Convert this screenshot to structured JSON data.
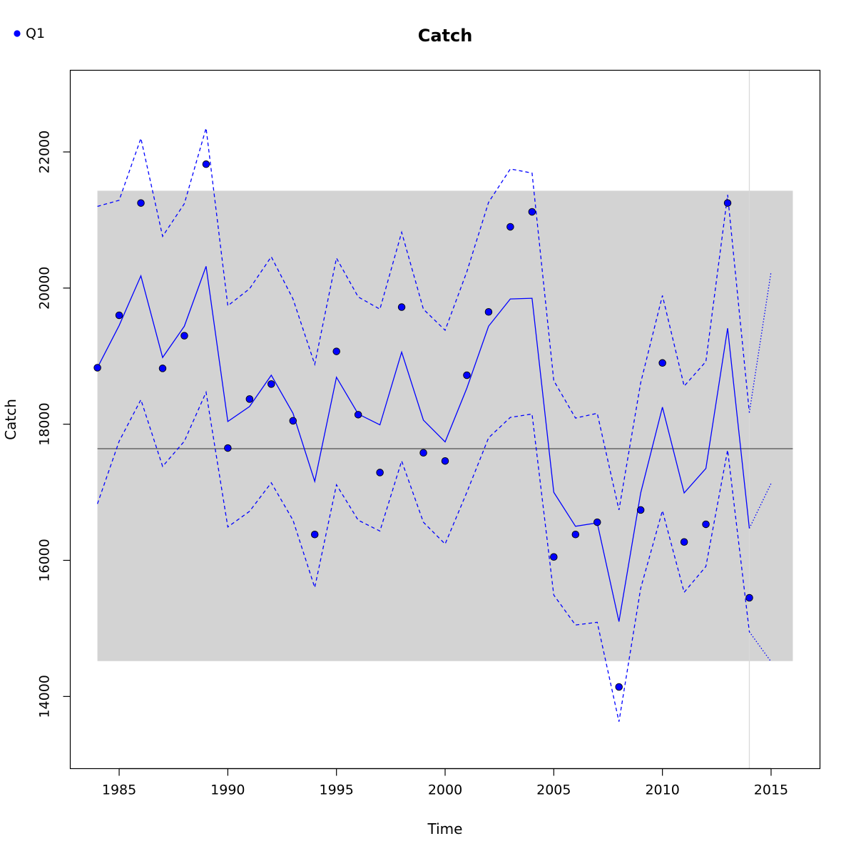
{
  "chart_data": {
    "type": "line",
    "title": "Catch",
    "xlabel": "Time",
    "ylabel": "Catch",
    "xlim": [
      1982.75,
      2017.25
    ],
    "ylim": [
      12940,
      23200
    ],
    "x_ticks": [
      1985,
      1990,
      1995,
      2000,
      2005,
      2010,
      2015
    ],
    "y_ticks": [
      14000,
      16000,
      18000,
      20000,
      22000
    ],
    "legend": {
      "position": "top-left",
      "entries": [
        {
          "label": "Q1",
          "color": "#0000ff",
          "marker": "filled-circle"
        }
      ]
    },
    "reference_band": {
      "x": [
        1984,
        2016
      ],
      "y": [
        14520,
        21430
      ],
      "color": "#d3d3d3"
    },
    "reference_line": {
      "y": 17640,
      "color": "#666666"
    },
    "vertical_line": {
      "x": 2014,
      "color": "#d9d9d9"
    },
    "series": [
      {
        "name": "Q1",
        "kind": "points",
        "color": "#0000ff",
        "x": [
          1984,
          1985,
          1986,
          1987,
          1988,
          1989,
          1990,
          1991,
          1992,
          1993,
          1994,
          1995,
          1996,
          1997,
          1998,
          1999,
          2000,
          2001,
          2002,
          2003,
          2004,
          2005,
          2006,
          2007,
          2008,
          2009,
          2010,
          2011,
          2012,
          2013,
          2014
        ],
        "values": [
          18830,
          19600,
          21250,
          18820,
          19300,
          21820,
          17650,
          18370,
          18590,
          18050,
          16380,
          19070,
          18140,
          17290,
          19720,
          17580,
          17460,
          18720,
          19650,
          20900,
          21120,
          16050,
          16380,
          16560,
          14140,
          16740,
          18900,
          16270,
          16530,
          21250,
          15450
        ]
      },
      {
        "kind": "line",
        "style": "solid",
        "color": "#0000ff",
        "x": [
          1984,
          1985,
          1986,
          1987,
          1988,
          1989,
          1990,
          1991,
          1992,
          1993,
          1994,
          1995,
          1996,
          1997,
          1998,
          1999,
          2000,
          2001,
          2002,
          2003,
          2004,
          2005,
          2006,
          2007,
          2008,
          2009,
          2010,
          2011,
          2012,
          2013,
          2014
        ],
        "values": [
          18830,
          19450,
          20180,
          18980,
          19440,
          20320,
          18040,
          18260,
          18720,
          18160,
          17160,
          18690,
          18150,
          17990,
          19060,
          18060,
          17740,
          18530,
          19440,
          19840,
          19850,
          17000,
          16500,
          16550,
          15100,
          16990,
          18250,
          16990,
          17350,
          19410,
          16470
        ]
      },
      {
        "kind": "line",
        "style": "dashed",
        "color": "#0000ff",
        "x": [
          1984,
          1985,
          1986,
          1987,
          1988,
          1989,
          1990,
          1991,
          1992,
          1993,
          1994,
          1995,
          1996,
          1997,
          1998,
          1999,
          2000,
          2001,
          2002,
          2003,
          2004,
          2005,
          2006,
          2007,
          2008,
          2009,
          2010,
          2011,
          2012,
          2013,
          2014
        ],
        "values": [
          21200,
          21290,
          22200,
          20760,
          21240,
          22350,
          19740,
          19990,
          20460,
          19840,
          18880,
          20440,
          19870,
          19690,
          20820,
          19690,
          19380,
          20240,
          21260,
          21750,
          21690,
          18640,
          18090,
          18160,
          16740,
          18610,
          19890,
          18560,
          18920,
          21370,
          18170
        ]
      },
      {
        "kind": "line",
        "style": "dashed",
        "color": "#0000ff",
        "x": [
          1984,
          1985,
          1986,
          1987,
          1988,
          1989,
          1990,
          1991,
          1992,
          1993,
          1994,
          1995,
          1996,
          1997,
          1998,
          1999,
          2000,
          2001,
          2002,
          2003,
          2004,
          2005,
          2006,
          2007,
          2008,
          2009,
          2010,
          2011,
          2012,
          2013,
          2014
        ],
        "values": [
          16830,
          17750,
          18360,
          17380,
          17750,
          18470,
          16490,
          16720,
          17140,
          16590,
          15600,
          17110,
          16590,
          16430,
          17460,
          16560,
          16240,
          17000,
          17800,
          18100,
          18150,
          15490,
          15050,
          15090,
          13630,
          15590,
          16730,
          15530,
          15910,
          17620,
          14950
        ]
      },
      {
        "kind": "line",
        "style": "dotted",
        "color": "#0000ff",
        "x": [
          2014,
          2015
        ],
        "values": [
          16470,
          17130
        ]
      },
      {
        "kind": "line",
        "style": "dotted",
        "color": "#0000ff",
        "x": [
          2014,
          2015
        ],
        "values": [
          18170,
          20240
        ]
      },
      {
        "kind": "line",
        "style": "dotted",
        "color": "#0000ff",
        "x": [
          2014,
          2015
        ],
        "values": [
          14950,
          14510
        ]
      }
    ]
  }
}
